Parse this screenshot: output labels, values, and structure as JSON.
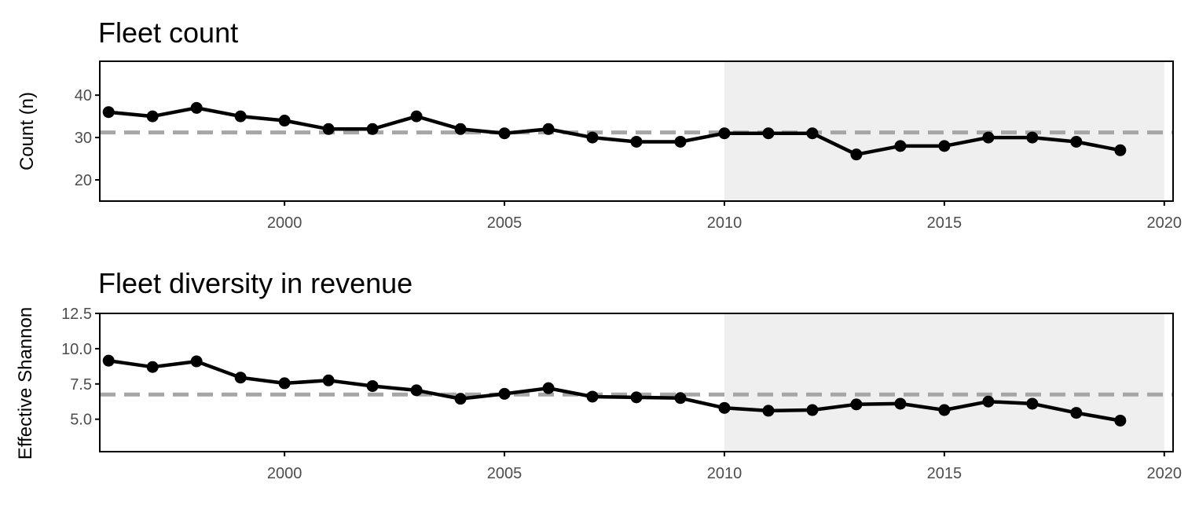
{
  "figure": {
    "colors": {
      "line": "#000000",
      "mean_line": "#a6a6a6",
      "shade": "#efefef",
      "frame": "#000000",
      "tick_text": "#4d4d4d"
    }
  },
  "chart_data": [
    {
      "type": "line",
      "title": "Fleet count",
      "xlabel": "",
      "ylabel": "Count (n)",
      "xlim": [
        1995.8,
        2020.2
      ],
      "ylim": [
        15,
        48
      ],
      "x_ticks": [
        2000,
        2005,
        2010,
        2015,
        2020
      ],
      "y_ticks": [
        20,
        30,
        40
      ],
      "y_tick_labels": [
        "20",
        "30",
        "40"
      ],
      "grid": false,
      "shaded_region": [
        2010,
        2020
      ],
      "mean_line": 31.2,
      "series": [
        {
          "x": [
            1996,
            1997,
            1998,
            1999,
            2000,
            2001,
            2002,
            2003,
            2004,
            2005,
            2006,
            2007,
            2008,
            2009,
            2010,
            2011,
            2012,
            2013,
            2014,
            2015,
            2016,
            2017,
            2018,
            2019
          ],
          "values": [
            36,
            35,
            37,
            35,
            34,
            32,
            32,
            35,
            32,
            31,
            32,
            30,
            29,
            29,
            31,
            31,
            31,
            26,
            28,
            28,
            30,
            30,
            29,
            27
          ]
        }
      ]
    },
    {
      "type": "line",
      "title": "Fleet diversity in revenue",
      "xlabel": "",
      "ylabel": "Effective Shannon",
      "xlim": [
        1995.8,
        2020.2
      ],
      "ylim": [
        2.7,
        12.5
      ],
      "x_ticks": [
        2000,
        2005,
        2010,
        2015,
        2020
      ],
      "y_ticks": [
        5.0,
        7.5,
        10.0,
        12.5
      ],
      "y_tick_labels": [
        "5.0",
        "7.5",
        "10.0",
        "12.5"
      ],
      "grid": false,
      "shaded_region": [
        2010,
        2020
      ],
      "mean_line": 6.75,
      "series": [
        {
          "x": [
            1996,
            1997,
            1998,
            1999,
            2000,
            2001,
            2002,
            2003,
            2004,
            2005,
            2006,
            2007,
            2008,
            2009,
            2010,
            2011,
            2012,
            2013,
            2014,
            2015,
            2016,
            2017,
            2018,
            2019
          ],
          "values": [
            9.15,
            8.7,
            9.1,
            7.95,
            7.55,
            7.75,
            7.35,
            7.05,
            6.45,
            6.8,
            7.2,
            6.6,
            6.55,
            6.5,
            5.8,
            5.6,
            5.65,
            6.05,
            6.1,
            5.65,
            6.25,
            6.1,
            5.45,
            4.9
          ]
        }
      ]
    }
  ]
}
